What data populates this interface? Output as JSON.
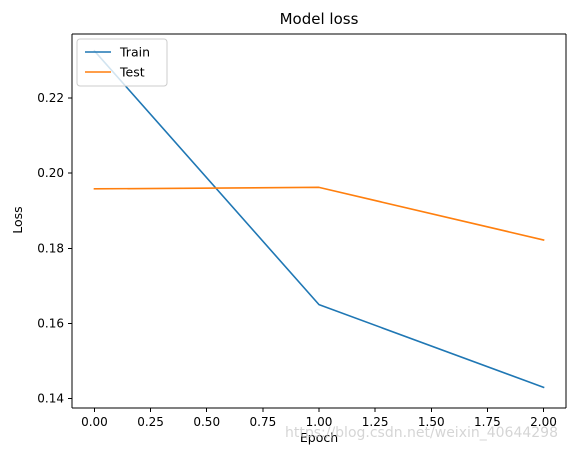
{
  "chart_data": {
    "type": "line",
    "title": "Model loss",
    "xlabel": "Epoch",
    "ylabel": "Loss",
    "xlim": [
      -0.1,
      2.1
    ],
    "ylim": [
      0.1375,
      0.237
    ],
    "xticks": [
      0.0,
      0.25,
      0.5,
      0.75,
      1.0,
      1.25,
      1.5,
      1.75,
      2.0
    ],
    "xtick_labels": [
      "0.00",
      "0.25",
      "0.50",
      "0.75",
      "1.00",
      "1.25",
      "1.50",
      "1.75",
      "2.00"
    ],
    "yticks": [
      0.14,
      0.16,
      0.18,
      0.2,
      0.22
    ],
    "ytick_labels": [
      "0.14",
      "0.16",
      "0.18",
      "0.20",
      "0.22"
    ],
    "x": [
      0,
      1,
      2
    ],
    "series": [
      {
        "name": "Train",
        "color": "#1f77b4",
        "values": [
          0.2325,
          0.165,
          0.143
        ]
      },
      {
        "name": "Test",
        "color": "#ff7f0e",
        "values": [
          0.1958,
          0.1962,
          0.1822
        ]
      }
    ],
    "legend_position": "top-left",
    "grid": false
  },
  "watermark": "https://blog.csdn.net/weixin_40644298"
}
